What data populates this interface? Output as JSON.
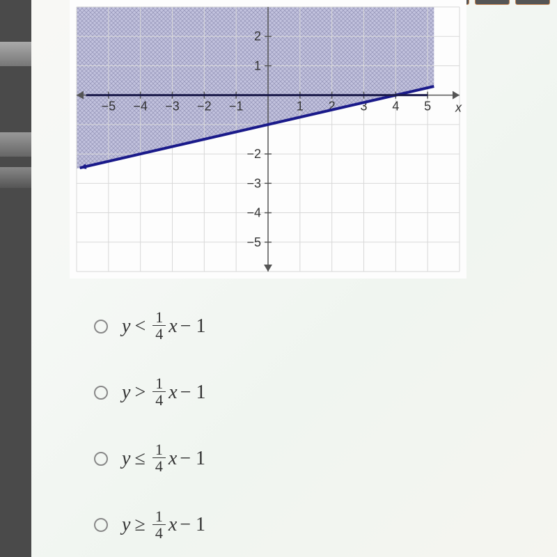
{
  "graph": {
    "type": "inequality-plot",
    "xlim": [
      -6,
      6
    ],
    "ylim": [
      -6,
      3
    ],
    "xticks": [
      -5,
      -4,
      -3,
      -2,
      -1,
      1,
      2,
      3,
      4,
      5
    ],
    "yticks": [
      -5,
      -4,
      -3,
      -2,
      1,
      2
    ],
    "x_label": "x",
    "line": {
      "slope": 0.25,
      "intercept": -1,
      "color": "#1a1a8a",
      "width": 4,
      "solid": true
    },
    "shade": "above",
    "shade_color": "#6a6aa8",
    "grid_color": "#d8d8d8",
    "axis_color": "#555555",
    "background_color": "#fdfdfd",
    "tick_fontsize": 18,
    "arrow_size": 10
  },
  "answers": {
    "options": [
      {
        "var": "y",
        "op": "<",
        "num": "1",
        "den": "4",
        "rhs_var": "x",
        "tail": "− 1"
      },
      {
        "var": "y",
        "op": ">",
        "num": "1",
        "den": "4",
        "rhs_var": "x",
        "tail": "− 1"
      },
      {
        "var": "y",
        "op": "≤",
        "num": "1",
        "den": "4",
        "rhs_var": "x",
        "tail": "− 1"
      },
      {
        "var": "y",
        "op": "≥",
        "num": "1",
        "den": "4",
        "rhs_var": "x",
        "tail": "− 1"
      }
    ]
  }
}
